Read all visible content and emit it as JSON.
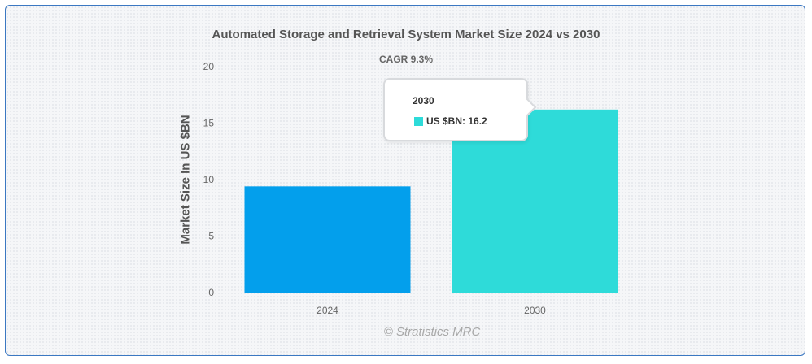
{
  "chart_data": {
    "type": "bar",
    "title": "Automated Storage and Retrieval System Market Size 2024 vs 2030",
    "subtitle": "CAGR 9.3%",
    "xlabel": "",
    "ylabel": "Market Size In US $BN",
    "categories": [
      "2024",
      "2030"
    ],
    "values": [
      9.4,
      16.2
    ],
    "bar_colors": [
      "#039fec",
      "#2edbd9"
    ],
    "ylim": [
      0,
      20
    ],
    "yticks": [
      0,
      5,
      10,
      15,
      20
    ],
    "grid": false,
    "legend": "none",
    "credit": "© Stratistics MRC",
    "tooltip": {
      "header": "2030",
      "series_label": "US $BN",
      "value_text": "16.2",
      "swatch_color": "#2edbd9"
    }
  }
}
